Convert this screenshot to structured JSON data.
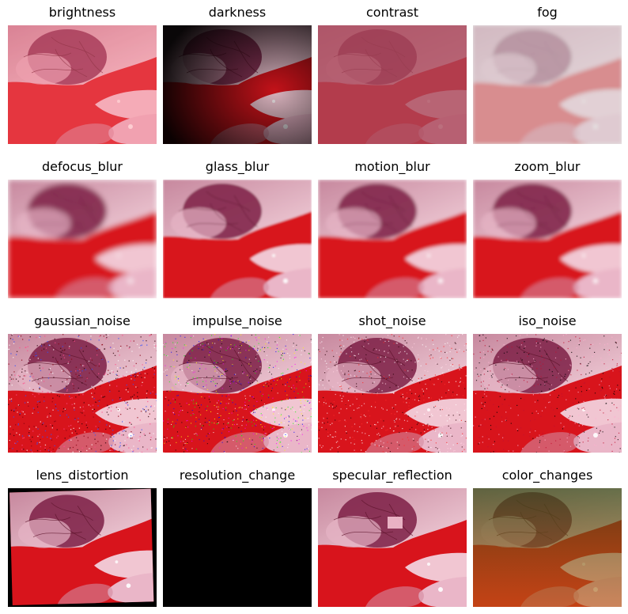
{
  "figure": {
    "panels": [
      {
        "label": "brightness",
        "effect": "brightness"
      },
      {
        "label": "darkness",
        "effect": "darkness"
      },
      {
        "label": "contrast",
        "effect": "contrast"
      },
      {
        "label": "fog",
        "effect": "fog"
      },
      {
        "label": "defocus_blur",
        "effect": "defocus_blur"
      },
      {
        "label": "glass_blur",
        "effect": "glass_blur"
      },
      {
        "label": "motion_blur",
        "effect": "motion_blur"
      },
      {
        "label": "zoom_blur",
        "effect": "zoom_blur"
      },
      {
        "label": "gaussian_noise",
        "effect": "gaussian_noise"
      },
      {
        "label": "impulse_noise",
        "effect": "impulse_noise"
      },
      {
        "label": "shot_noise",
        "effect": "shot_noise"
      },
      {
        "label": "iso_noise",
        "effect": "iso_noise"
      },
      {
        "label": "lens_distortion",
        "effect": "lens_distortion"
      },
      {
        "label": "resolution_change",
        "effect": "resolution_change"
      },
      {
        "label": "specular_reflection",
        "effect": "specular_reflection"
      },
      {
        "label": "color_changes",
        "effect": "color_changes"
      }
    ]
  },
  "colors": {
    "background": "#ffffff",
    "tissue_pink": "#e7b6c4",
    "tissue_dark": "#7a1f3a",
    "blood_red": "#e1131c",
    "black_panel": "#000000"
  }
}
